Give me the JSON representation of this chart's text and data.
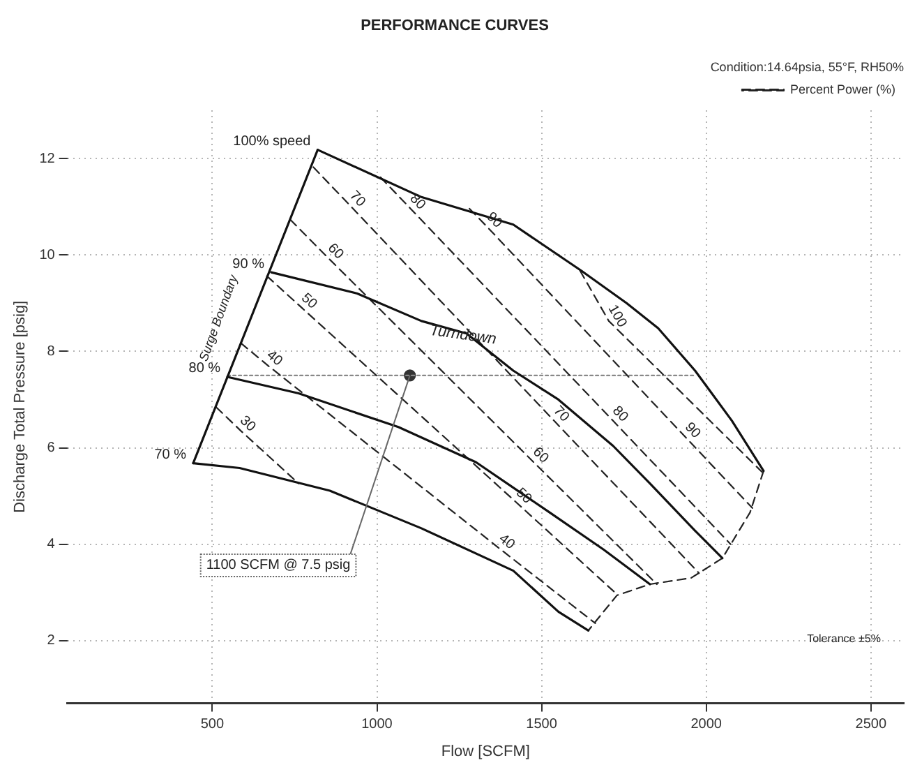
{
  "chart_data": {
    "type": "line",
    "title": "PERFORMANCE CURVES",
    "subtitle": "Condition:14.64psia, 55°F, RH50%",
    "xlabel": "Flow [SCFM]",
    "ylabel": "Discharge Total Pressure [psig]",
    "xlim": [
      60,
      2600
    ],
    "ylim": [
      0.7,
      13
    ],
    "xticks": [
      500,
      1000,
      1500,
      2000,
      2500
    ],
    "yticks": [
      2,
      4,
      6,
      8,
      10,
      12
    ],
    "grid": true,
    "legend": "top right",
    "series": [
      {
        "name": "100% speed",
        "color": "#111111",
        "line_style": "solid",
        "x": [
          820,
          1135,
          1414,
          1621,
          1758,
          1854,
          1966,
          2078,
          2174
        ],
        "values": [
          12.18,
          11.2,
          10.63,
          9.67,
          9.0,
          8.48,
          7.6,
          6.56,
          5.52
        ]
      },
      {
        "name": "90 %",
        "color": "#111111",
        "line_style": "solid",
        "x": [
          679,
          940,
          1135,
          1272,
          1414,
          1551,
          1717,
          1829,
          1966,
          2049
        ],
        "values": [
          9.64,
          9.2,
          8.63,
          8.37,
          7.6,
          7.0,
          6.04,
          5.26,
          4.28,
          3.71
        ]
      },
      {
        "name": "80 %",
        "color": "#111111",
        "line_style": "solid",
        "x": [
          546,
          762,
          1065,
          1301,
          1522,
          1688,
          1829
        ],
        "values": [
          7.47,
          7.13,
          6.43,
          5.7,
          4.67,
          3.89,
          3.17
        ]
      },
      {
        "name": "70 %",
        "color": "#111111",
        "line_style": "solid",
        "x": [
          442,
          583,
          857,
          1135,
          1414,
          1551,
          1642
        ],
        "values": [
          5.68,
          5.58,
          5.11,
          4.33,
          3.45,
          2.6,
          2.21
        ]
      },
      {
        "color": "#111111",
        "line_style": "solid",
        "x": [
          442,
          820
        ],
        "values": [
          5.68,
          12.18
        ]
      },
      {
        "color": "#222222",
        "line_style": "dashed",
        "x": [
          2174,
          2133,
          2049,
          1954,
          1829,
          1729,
          1688,
          1642
        ],
        "values": [
          5.52,
          4.66,
          3.71,
          3.3,
          3.17,
          2.94,
          2.6,
          2.21
        ]
      },
      {
        "name": "Percent Power (%)",
        "color": "#222222",
        "line_style": "dashed",
        "x": [
          512,
          587,
          762
        ],
        "values": [
          6.84,
          6.35,
          5.26
        ]
      },
      {
        "color": "#222222",
        "line_style": "dashed",
        "x": [
          587,
          670,
          1376,
          1663
        ],
        "values": [
          8.17,
          7.7,
          3.89,
          2.36
        ]
      },
      {
        "color": "#222222",
        "line_style": "dashed",
        "x": [
          666,
          774,
          1426,
          1729
        ],
        "values": [
          9.56,
          8.89,
          4.85,
          2.96
        ]
      },
      {
        "color": "#222222",
        "line_style": "dashed",
        "x": [
          737,
          853,
          1476,
          1850
        ],
        "values": [
          10.73,
          9.93,
          5.7,
          3.17
        ]
      },
      {
        "color": "#222222",
        "line_style": "dashed",
        "x": [
          807,
          919,
          1538,
          1978
        ],
        "values": [
          11.82,
          11.02,
          6.56,
          3.4
        ]
      },
      {
        "color": "#222222",
        "line_style": "dashed",
        "x": [
          1011,
          1102,
          1717,
          2074
        ],
        "values": [
          11.61,
          10.96,
          6.56,
          4.0
        ]
      },
      {
        "color": "#222222",
        "line_style": "dashed",
        "x": [
          1281,
          1335,
          1937,
          2140
        ],
        "values": [
          10.96,
          10.58,
          6.22,
          4.75
        ]
      },
      {
        "color": "#222222",
        "line_style": "dashed",
        "x": [
          1617,
          1704,
          2169
        ],
        "values": [
          9.67,
          8.63,
          5.5
        ]
      },
      {
        "color": "#888888",
        "line_style": "dotted",
        "x": [
          546,
          1966
        ],
        "values": [
          7.5,
          7.5
        ]
      },
      {
        "type": "scatter",
        "color": "#333333",
        "marker": "circle",
        "x": [
          1100
        ],
        "values": [
          7.5
        ],
        "value_labels": [
          "1100 SCFM @ 7.5 psig"
        ]
      }
    ],
    "annotations": [
      {
        "text": "30",
        "x": 587,
        "y": 6.35
      },
      {
        "text": "40",
        "x": 670,
        "y": 7.7
      },
      {
        "text": "40",
        "x": 1376,
        "y": 3.89
      },
      {
        "text": "50",
        "x": 774,
        "y": 8.89
      },
      {
        "text": "50",
        "x": 1426,
        "y": 4.85
      },
      {
        "text": "60",
        "x": 853,
        "y": 9.93
      },
      {
        "text": "60",
        "x": 1476,
        "y": 5.7
      },
      {
        "text": "70",
        "x": 919,
        "y": 11.02
      },
      {
        "text": "70",
        "x": 1538,
        "y": 6.56
      },
      {
        "text": "80",
        "x": 1102,
        "y": 10.96
      },
      {
        "text": "80",
        "x": 1717,
        "y": 6.56
      },
      {
        "text": "90",
        "x": 1335,
        "y": 10.58
      },
      {
        "text": "90",
        "x": 1937,
        "y": 6.22
      },
      {
        "text": "100",
        "x": 1704,
        "y": 8.63
      },
      "Surge Boundary",
      "Turndown",
      "Tolerance ±5%"
    ]
  }
}
